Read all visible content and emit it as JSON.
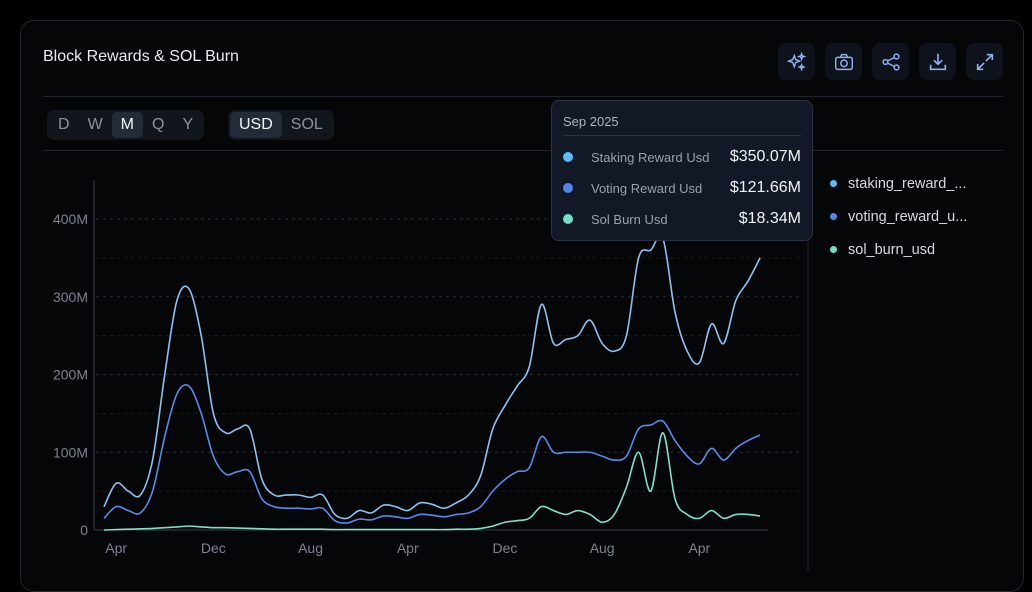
{
  "title": "Block Rewards & SOL Burn",
  "tools": [
    {
      "name": "sparkle-icon"
    },
    {
      "name": "camera-icon"
    },
    {
      "name": "share-icon"
    },
    {
      "name": "download-icon"
    },
    {
      "name": "expand-icon"
    }
  ],
  "periods": [
    "D",
    "W",
    "M",
    "Q",
    "Y"
  ],
  "active_period": "M",
  "units": [
    "USD",
    "SOL"
  ],
  "active_unit": "USD",
  "tooltip": {
    "date": "Sep 2025",
    "rows": [
      {
        "label": "Staking Reward Usd",
        "value": "$350.07M"
      },
      {
        "label": "Voting Reward Usd",
        "value": "$121.66M"
      },
      {
        "label": "Sol Burn Usd",
        "value": "$18.34M"
      }
    ]
  },
  "legend": [
    "staking_reward_...",
    "voting_reward_u...",
    "sol_burn_usd"
  ],
  "colors": {
    "staking": "#8ec1f2",
    "voting": "#5b8ae6",
    "burn": "#7fe0c4",
    "tip_staking": "#5bbcf7",
    "tip_voting": "#4d86ee",
    "tip_burn": "#6fe0c6"
  },
  "chart_data": {
    "type": "line",
    "title": "Block Rewards & SOL Burn",
    "x_start": "Mar 2021",
    "x_end": "Sep 2025",
    "x_step": "month",
    "x_ticks": [
      "Apr",
      "Dec",
      "Aug",
      "Apr",
      "Dec",
      "Aug",
      "Apr"
    ],
    "x_tick_index": [
      1,
      9,
      17,
      25,
      33,
      41,
      49
    ],
    "y_ticks": [
      "0",
      "100M",
      "200M",
      "300M",
      "400M"
    ],
    "ylim": [
      0,
      450
    ],
    "yunit": "M USD",
    "grid": true,
    "legend_position": "right",
    "series": [
      {
        "name": "staking_reward_usd",
        "values": [
          30,
          60,
          50,
          45,
          90,
          200,
          295,
          310,
          250,
          150,
          125,
          130,
          130,
          65,
          45,
          45,
          45,
          42,
          45,
          20,
          15,
          25,
          22,
          32,
          30,
          25,
          35,
          33,
          28,
          35,
          45,
          70,
          130,
          160,
          185,
          210,
          290,
          240,
          245,
          250,
          270,
          240,
          230,
          250,
          350,
          360,
          375,
          280,
          230,
          215,
          265,
          240,
          295,
          320,
          350
        ]
      },
      {
        "name": "voting_reward_usd",
        "values": [
          15,
          30,
          25,
          22,
          50,
          120,
          175,
          185,
          150,
          95,
          72,
          75,
          75,
          40,
          30,
          28,
          28,
          27,
          28,
          12,
          9,
          14,
          13,
          18,
          17,
          15,
          20,
          19,
          17,
          20,
          22,
          30,
          50,
          65,
          75,
          80,
          120,
          100,
          100,
          100,
          100,
          95,
          90,
          95,
          130,
          135,
          140,
          115,
          95,
          85,
          105,
          90,
          105,
          115,
          122
        ]
      },
      {
        "name": "sol_burn_usd",
        "values": [
          0,
          0.5,
          1,
          1.5,
          2,
          3,
          4,
          5,
          4,
          3,
          3,
          2.5,
          2,
          1.5,
          1,
          1,
          1,
          1,
          1,
          0.5,
          0.5,
          0.5,
          0.5,
          0.5,
          0.5,
          0.5,
          0.5,
          0.5,
          0.5,
          1,
          1,
          2,
          5,
          10,
          12,
          15,
          30,
          25,
          20,
          25,
          20,
          10,
          20,
          55,
          100,
          50,
          125,
          40,
          20,
          15,
          25,
          15,
          20,
          20,
          18
        ]
      }
    ]
  }
}
